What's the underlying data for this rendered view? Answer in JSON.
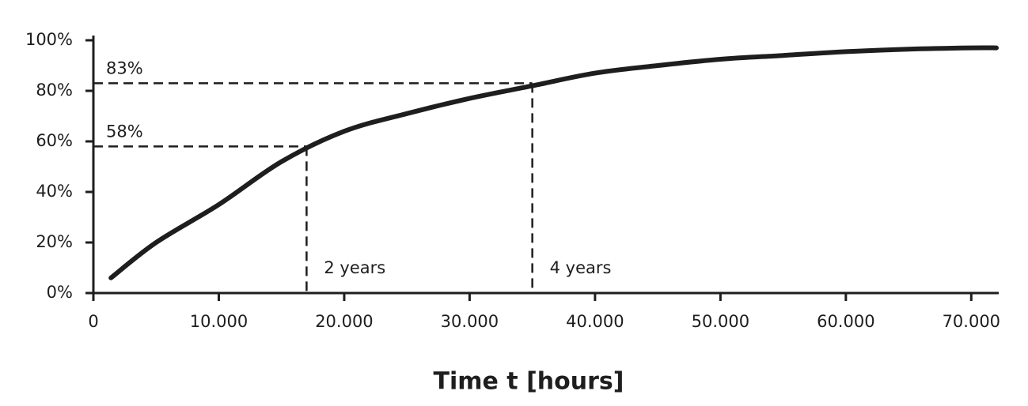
{
  "chart_data": {
    "type": "line",
    "x_label": "Time t [hours]",
    "x": [
      1400,
      5000,
      10000,
      15000,
      20000,
      25000,
      30000,
      35000,
      40000,
      45000,
      50000,
      55000,
      60000,
      65000,
      70000,
      72000
    ],
    "values": [
      6,
      20,
      35,
      52,
      64,
      71,
      77,
      82,
      87,
      90,
      92.5,
      94,
      95.5,
      96.5,
      97,
      97
    ],
    "color": "#1e1e1e",
    "xlim": [
      0,
      72000
    ],
    "ylim": [
      0,
      100
    ],
    "xticks": [
      0,
      {
        "value": 10000,
        "label": "10.000"
      },
      {
        "value": 20000,
        "label": "20.000"
      },
      {
        "value": 30000,
        "label": "30.000"
      },
      {
        "value": 40000,
        "label": "40.000"
      },
      {
        "value": 50000,
        "label": "50.000"
      },
      {
        "value": 60000,
        "label": "60.000"
      },
      {
        "value": 70000,
        "label": "70.000"
      }
    ],
    "yticks": [
      {
        "value": 0,
        "label": "0%"
      },
      {
        "value": 20,
        "label": "20%"
      },
      {
        "value": 40,
        "label": "40%"
      },
      {
        "value": 60,
        "label": "60%"
      },
      {
        "value": 80,
        "label": "80%"
      },
      {
        "value": 100,
        "label": "100%"
      }
    ],
    "reference_lines": [
      {
        "x": 17000,
        "y": 58,
        "y_label": "58%",
        "x_label": "2 years"
      },
      {
        "x": 35000,
        "y": 83,
        "y_label": "83%",
        "x_label": "4 years"
      }
    ]
  }
}
